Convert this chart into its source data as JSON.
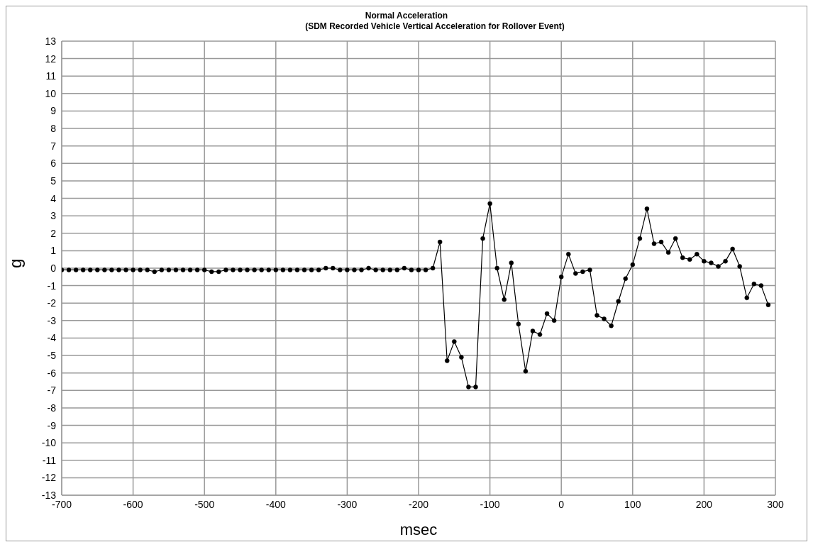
{
  "chart_data": {
    "type": "line",
    "title": "Normal Acceleration",
    "subtitle": "(SDM Recorded Vehicle Vertical Acceleration for Rollover Event)",
    "xlabel": "msec",
    "ylabel": "g",
    "x": [
      -700,
      -690,
      -680,
      -670,
      -660,
      -650,
      -640,
      -630,
      -620,
      -610,
      -600,
      -590,
      -580,
      -570,
      -560,
      -550,
      -540,
      -530,
      -520,
      -510,
      -500,
      -490,
      -480,
      -470,
      -460,
      -450,
      -440,
      -430,
      -420,
      -410,
      -400,
      -390,
      -380,
      -370,
      -360,
      -350,
      -340,
      -330,
      -320,
      -310,
      -300,
      -290,
      -280,
      -270,
      -260,
      -250,
      -240,
      -230,
      -220,
      -210,
      -200,
      -190,
      -180,
      -170,
      -160,
      -150,
      -140,
      -130,
      -120,
      -110,
      -100,
      -90,
      -80,
      -70,
      -60,
      -50,
      -40,
      -30,
      -20,
      -10,
      0,
      10,
      20,
      30,
      40,
      50,
      60,
      70,
      80,
      90,
      100,
      110,
      120,
      130,
      140,
      150,
      160,
      170,
      180,
      190,
      200,
      210,
      220,
      230,
      240,
      250,
      260,
      270,
      280,
      290
    ],
    "series": [
      {
        "color": "#000000",
        "values": [
          -0.1,
          -0.1,
          -0.1,
          -0.1,
          -0.1,
          -0.1,
          -0.1,
          -0.1,
          -0.1,
          -0.1,
          -0.1,
          -0.1,
          -0.1,
          -0.2,
          -0.1,
          -0.1,
          -0.1,
          -0.1,
          -0.1,
          -0.1,
          -0.1,
          -0.2,
          -0.2,
          -0.1,
          -0.1,
          -0.1,
          -0.1,
          -0.1,
          -0.1,
          -0.1,
          -0.1,
          -0.1,
          -0.1,
          -0.1,
          -0.1,
          -0.1,
          -0.1,
          0,
          0,
          -0.1,
          -0.1,
          -0.1,
          -0.1,
          0,
          -0.1,
          -0.1,
          -0.1,
          -0.1,
          0,
          -0.1,
          -0.1,
          -0.1,
          0,
          1.5,
          -5.3,
          -4.2,
          -5.1,
          -6.8,
          -6.8,
          1.7,
          3.7,
          0,
          -1.8,
          0.3,
          -3.2,
          -5.9,
          -3.6,
          -3.8,
          -2.6,
          -3.0,
          -0.5,
          0.8,
          -0.3,
          -0.2,
          -0.1,
          -2.7,
          -2.9,
          -3.3,
          -1.9,
          -0.6,
          0.2,
          1.7,
          3.4,
          1.4,
          1.5,
          0.9,
          1.7,
          0.6,
          0.5,
          0.8,
          0.4,
          0.3,
          0.1,
          0.4,
          1.1,
          0.1,
          -1.7,
          -0.9,
          -1.0,
          -2.1
        ]
      }
    ],
    "xlim": [
      -700,
      300
    ],
    "xticks": [
      -700,
      -600,
      -500,
      -400,
      -300,
      -200,
      -100,
      0,
      100,
      200,
      300
    ],
    "ylim": [
      -13,
      13
    ],
    "yticks": [
      -13,
      -12,
      -11,
      -10,
      -9,
      -8,
      -7,
      -6,
      -5,
      -4,
      -3,
      -2,
      -1,
      0,
      1,
      2,
      3,
      4,
      5,
      6,
      7,
      8,
      9,
      10,
      11,
      12,
      13
    ],
    "grid": true,
    "marker": "circle",
    "line_style": "solid"
  }
}
